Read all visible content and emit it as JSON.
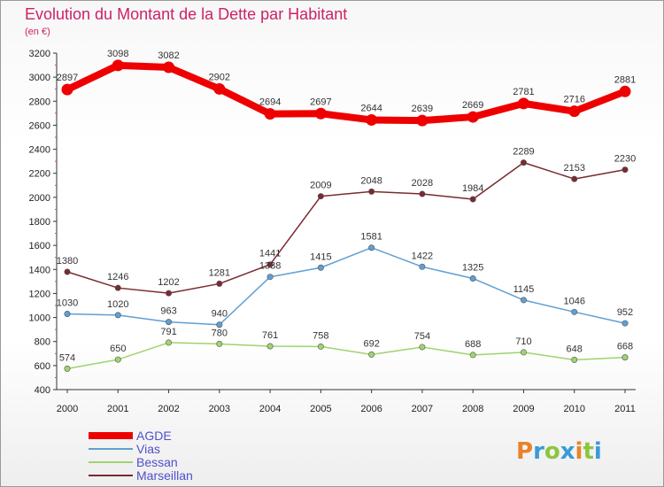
{
  "chart_data": {
    "type": "line",
    "title": "Evolution du Montant de la Dette par Habitant",
    "subtitle": "(en €)",
    "x": [
      "2000",
      "2001",
      "2002",
      "2003",
      "2004",
      "2005",
      "2006",
      "2007",
      "2008",
      "2009",
      "2010",
      "2011"
    ],
    "ylim": [
      400,
      3200
    ],
    "yticks": [
      400,
      600,
      800,
      1000,
      1200,
      1400,
      1600,
      1800,
      2000,
      2200,
      2400,
      2600,
      2800,
      3000,
      3200
    ],
    "grid": false,
    "legend_position": "bottom-left",
    "series": [
      {
        "name": "AGDE",
        "color": "#ee0000",
        "emphasis": true,
        "values": [
          2897,
          3098,
          3082,
          2902,
          2694,
          2697,
          2644,
          2639,
          2669,
          2781,
          2716,
          2881
        ]
      },
      {
        "name": "Vias",
        "color": "#5f9fd3",
        "emphasis": false,
        "values": [
          1030,
          1020,
          963,
          940,
          1338,
          1415,
          1581,
          1422,
          1325,
          1145,
          1046,
          952
        ]
      },
      {
        "name": "Bessan",
        "color": "#9fd36f",
        "emphasis": false,
        "values": [
          574,
          650,
          791,
          780,
          761,
          758,
          692,
          754,
          688,
          710,
          648,
          668
        ]
      },
      {
        "name": "Marseillan",
        "color": "#7a2a30",
        "emphasis": false,
        "values": [
          1380,
          1246,
          1202,
          1281,
          1441,
          2009,
          2048,
          2028,
          1984,
          2289,
          2153,
          2230
        ]
      }
    ]
  },
  "branding": {
    "logo_text": "Proxiti"
  }
}
